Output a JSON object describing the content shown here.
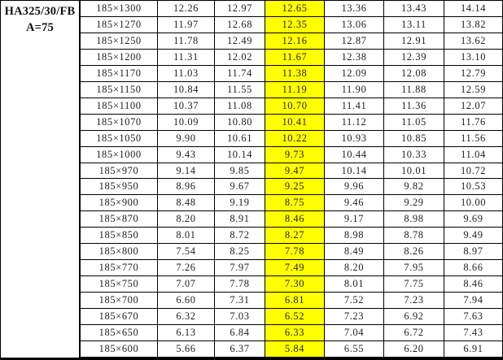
{
  "header": {
    "model": "HA325/30/FB",
    "spec": "A=75"
  },
  "table": {
    "highlight_color": "#ffff00",
    "highlighted_column_index": 2,
    "rows": [
      {
        "size": "185×1300",
        "values": [
          "12.26",
          "12.97",
          "12.65",
          "13.36",
          "13.43",
          "14.14"
        ]
      },
      {
        "size": "185×1270",
        "values": [
          "11.97",
          "12.68",
          "12.35",
          "13.06",
          "13.11",
          "13.82"
        ]
      },
      {
        "size": "185×1250",
        "values": [
          "11.78",
          "12.49",
          "12.16",
          "12.87",
          "12.91",
          "13.62"
        ]
      },
      {
        "size": "185×1200",
        "values": [
          "11.31",
          "12.02",
          "11.67",
          "12.38",
          "12.39",
          "13.10"
        ]
      },
      {
        "size": "185×1170",
        "values": [
          "11.03",
          "11.74",
          "11.38",
          "12.09",
          "12.08",
          "12.79"
        ]
      },
      {
        "size": "185×1150",
        "values": [
          "10.84",
          "11.55",
          "11.19",
          "11.90",
          "11.88",
          "12.59"
        ]
      },
      {
        "size": "185×1100",
        "values": [
          "10.37",
          "11.08",
          "10.70",
          "11.41",
          "11.36",
          "12.07"
        ]
      },
      {
        "size": "185×1070",
        "values": [
          "10.09",
          "10.80",
          "10.41",
          "11.12",
          "11.05",
          "11.76"
        ]
      },
      {
        "size": "185×1050",
        "values": [
          "9.90",
          "10.61",
          "10.22",
          "10.93",
          "10.85",
          "11.56"
        ]
      },
      {
        "size": "185×1000",
        "values": [
          "9.43",
          "10.14",
          "9.73",
          "10.44",
          "10.33",
          "11.04"
        ]
      },
      {
        "size": "185×970",
        "values": [
          "9.14",
          "9.85",
          "9.47",
          "10.14",
          "10.01",
          "10.72"
        ]
      },
      {
        "size": "185×950",
        "values": [
          "8.96",
          "9.67",
          "9.25",
          "9.96",
          "9.82",
          "10.53"
        ]
      },
      {
        "size": "185×900",
        "values": [
          "8.48",
          "9.19",
          "8.75",
          "9.46",
          "9.29",
          "10.00"
        ]
      },
      {
        "size": "185×870",
        "values": [
          "8.20",
          "8.91",
          "8.46",
          "9.17",
          "8.98",
          "9.69"
        ]
      },
      {
        "size": "185×850",
        "values": [
          "8.01",
          "8.72",
          "8.27",
          "8.98",
          "8.78",
          "9.49"
        ]
      },
      {
        "size": "185×800",
        "values": [
          "7.54",
          "8.25",
          "7.78",
          "8.49",
          "8.26",
          "8.97"
        ]
      },
      {
        "size": "185×770",
        "values": [
          "7.26",
          "7.97",
          "7.49",
          "8.20",
          "7.95",
          "8.66"
        ]
      },
      {
        "size": "185×750",
        "values": [
          "7.07",
          "7.78",
          "7.30",
          "8.01",
          "7.75",
          "8.46"
        ]
      },
      {
        "size": "185×700",
        "values": [
          "6.60",
          "7.31",
          "6.81",
          "7.52",
          "7.23",
          "7.94"
        ]
      },
      {
        "size": "185×670",
        "values": [
          "6.32",
          "7.03",
          "6.52",
          "7.23",
          "6.92",
          "7.63"
        ]
      },
      {
        "size": "185×650",
        "values": [
          "6.13",
          "6.84",
          "6.33",
          "7.04",
          "6.72",
          "7.43"
        ]
      },
      {
        "size": "185×600",
        "values": [
          "5.66",
          "6.37",
          "5.84",
          "6.55",
          "6.20",
          "6.91"
        ]
      }
    ]
  }
}
